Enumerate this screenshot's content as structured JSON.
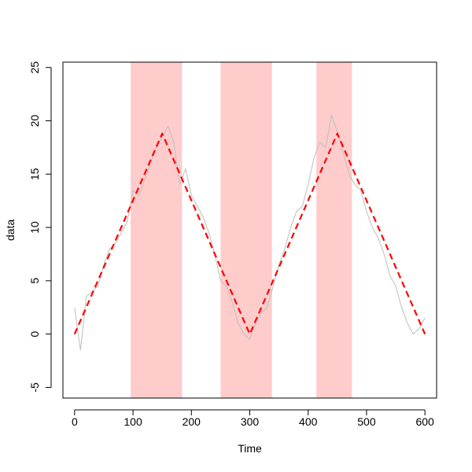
{
  "chart_data": {
    "type": "line",
    "title": "",
    "xlabel": "Time",
    "ylabel": "data",
    "xlim": [
      -20,
      620
    ],
    "ylim": [
      -6,
      25.5
    ],
    "xticks": [
      0,
      100,
      200,
      300,
      400,
      500,
      600
    ],
    "yticks": [
      -5,
      0,
      5,
      10,
      15,
      20,
      25
    ],
    "xtick_labels": [
      "0",
      "100",
      "200",
      "300",
      "400",
      "500",
      "600"
    ],
    "ytick_labels": [
      "-5",
      "0",
      "5",
      "10",
      "15",
      "20",
      "25"
    ],
    "grid": false,
    "legend": "none",
    "highlight_regions": [
      {
        "x_start": 96,
        "x_end": 184
      },
      {
        "x_start": 250,
        "x_end": 338
      },
      {
        "x_start": 414,
        "x_end": 475
      }
    ],
    "highlight_color": "#ffcccc",
    "series": [
      {
        "style": "solid",
        "color": "#bebebe",
        "x": [
          0,
          10,
          20,
          30,
          40,
          50,
          60,
          70,
          80,
          90,
          100,
          110,
          120,
          130,
          140,
          150,
          160,
          170,
          180,
          190,
          200,
          210,
          220,
          230,
          240,
          250,
          260,
          270,
          280,
          290,
          300,
          310,
          320,
          330,
          340,
          350,
          360,
          370,
          380,
          390,
          400,
          410,
          420,
          430,
          440,
          450,
          460,
          470,
          480,
          490,
          500,
          510,
          520,
          530,
          540,
          550,
          560,
          570,
          580,
          590,
          600
        ],
        "y": [
          2.5,
          -1.5,
          3.5,
          4.0,
          4.5,
          6.5,
          8.0,
          8.5,
          9.5,
          10.5,
          13.5,
          13.0,
          14.5,
          16.0,
          17.5,
          18.5,
          19.5,
          18.0,
          14.0,
          15.5,
          13.0,
          12.0,
          11.0,
          9.5,
          7.5,
          5.0,
          4.5,
          3.0,
          1.0,
          0.0,
          -0.5,
          1.0,
          2.0,
          2.5,
          4.5,
          6.5,
          8.0,
          10.0,
          11.5,
          12.0,
          14.0,
          16.5,
          18.0,
          17.5,
          20.5,
          19.0,
          17.0,
          15.0,
          14.0,
          13.5,
          11.5,
          10.0,
          9.0,
          7.5,
          5.5,
          4.5,
          2.5,
          1.0,
          0.0,
          0.5,
          1.5
        ]
      },
      {
        "style": "dashed",
        "color": "#ff0000",
        "x": [
          0,
          150,
          300,
          450,
          600
        ],
        "y": [
          0,
          18.8,
          0,
          18.8,
          0
        ]
      }
    ]
  }
}
